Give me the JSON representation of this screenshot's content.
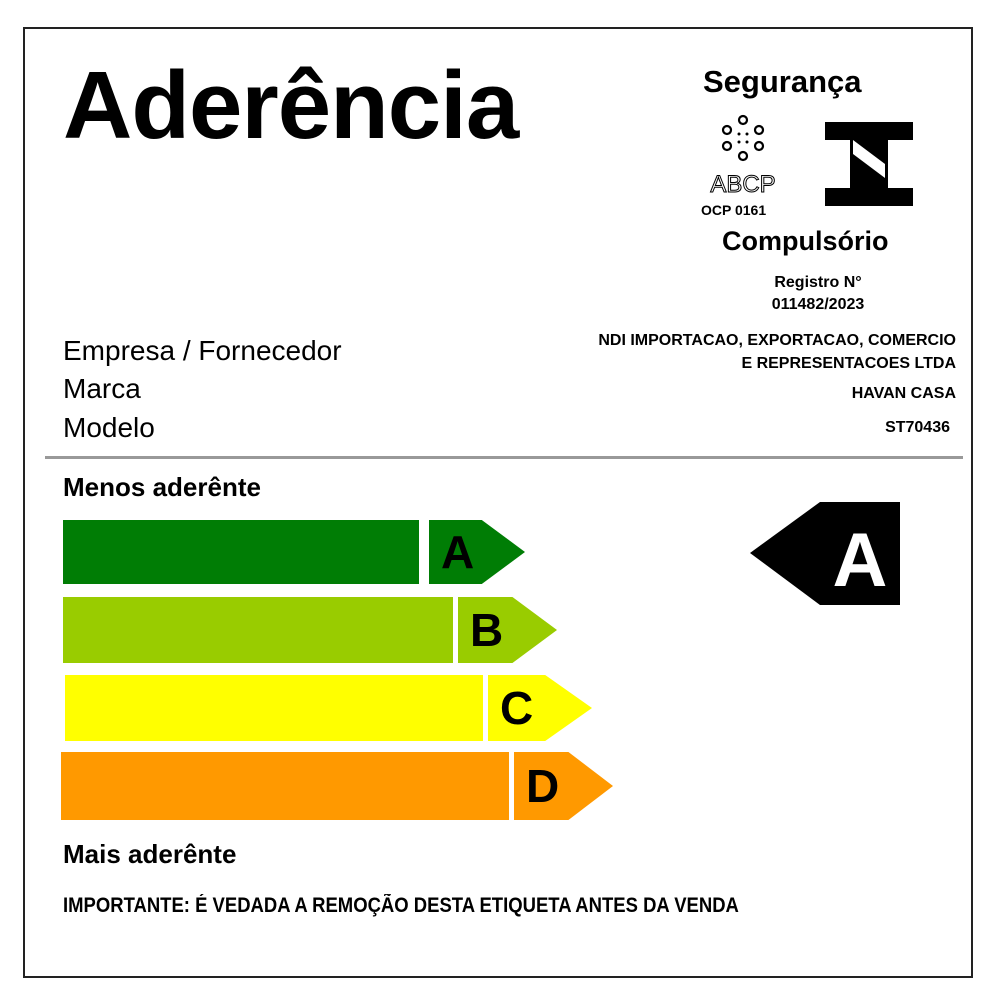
{
  "title": "Aderência",
  "seal": {
    "heading": "Segurança",
    "abcp_logo": "ABCP",
    "abcp_code": "OCP 0161",
    "inmetro_logo": "inmetro-i-icon",
    "type": "Compulsório",
    "registro_label": "Registro N°",
    "registro_number": "011482/2023"
  },
  "fields": [
    {
      "label": "Empresa / Fornecedor",
      "value_lines": [
        "NDI IMPORTACAO, EXPORTACAO, COMERCIO",
        "E REPRESENTACOES LTDA"
      ]
    },
    {
      "label": "Marca",
      "value_lines": [
        "HAVAN CASA"
      ]
    },
    {
      "label": "Modelo",
      "value_lines": [
        "ST70436"
      ]
    }
  ],
  "scale": {
    "top_label": "Menos aderênte",
    "bottom_label": "Mais aderênte",
    "classes": [
      {
        "letter": "A",
        "color": "#007d05"
      },
      {
        "letter": "B",
        "color": "#99cc00"
      },
      {
        "letter": "C",
        "color": "#ffff00"
      },
      {
        "letter": "D",
        "color": "#ff9900"
      }
    ],
    "rating": "A",
    "rating_color": "#000000"
  },
  "notice": "IMPORTANTE: É VEDADA A REMOÇÃO DESTA ETIQUETA ANTES DA VENDA"
}
